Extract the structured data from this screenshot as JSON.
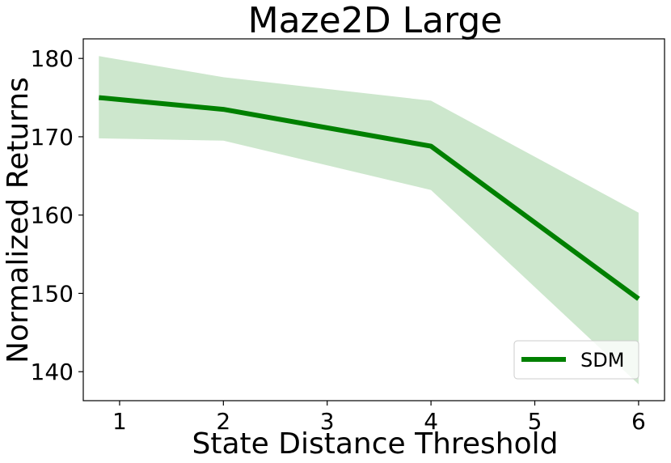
{
  "chart_data": {
    "type": "line",
    "title": "Maze2D Large",
    "xlabel": "State Distance Threshold",
    "ylabel": "Normalized Returns",
    "xlim": [
      0.65,
      6.25
    ],
    "ylim": [
      136.3,
      182.5
    ],
    "xticks": [
      1,
      2,
      3,
      4,
      5,
      6
    ],
    "yticks": [
      140,
      150,
      160,
      170,
      180
    ],
    "grid": false,
    "legend_position": "lower-right",
    "series": [
      {
        "name": "SDM",
        "color": "#008000",
        "band_color": "#cde7cd",
        "x": [
          0.8,
          2,
          4,
          6
        ],
        "y": [
          175.0,
          173.5,
          168.8,
          149.3
        ],
        "lower": [
          169.8,
          169.5,
          163.2,
          138.4
        ],
        "upper": [
          180.3,
          177.6,
          174.6,
          160.3
        ]
      }
    ]
  }
}
